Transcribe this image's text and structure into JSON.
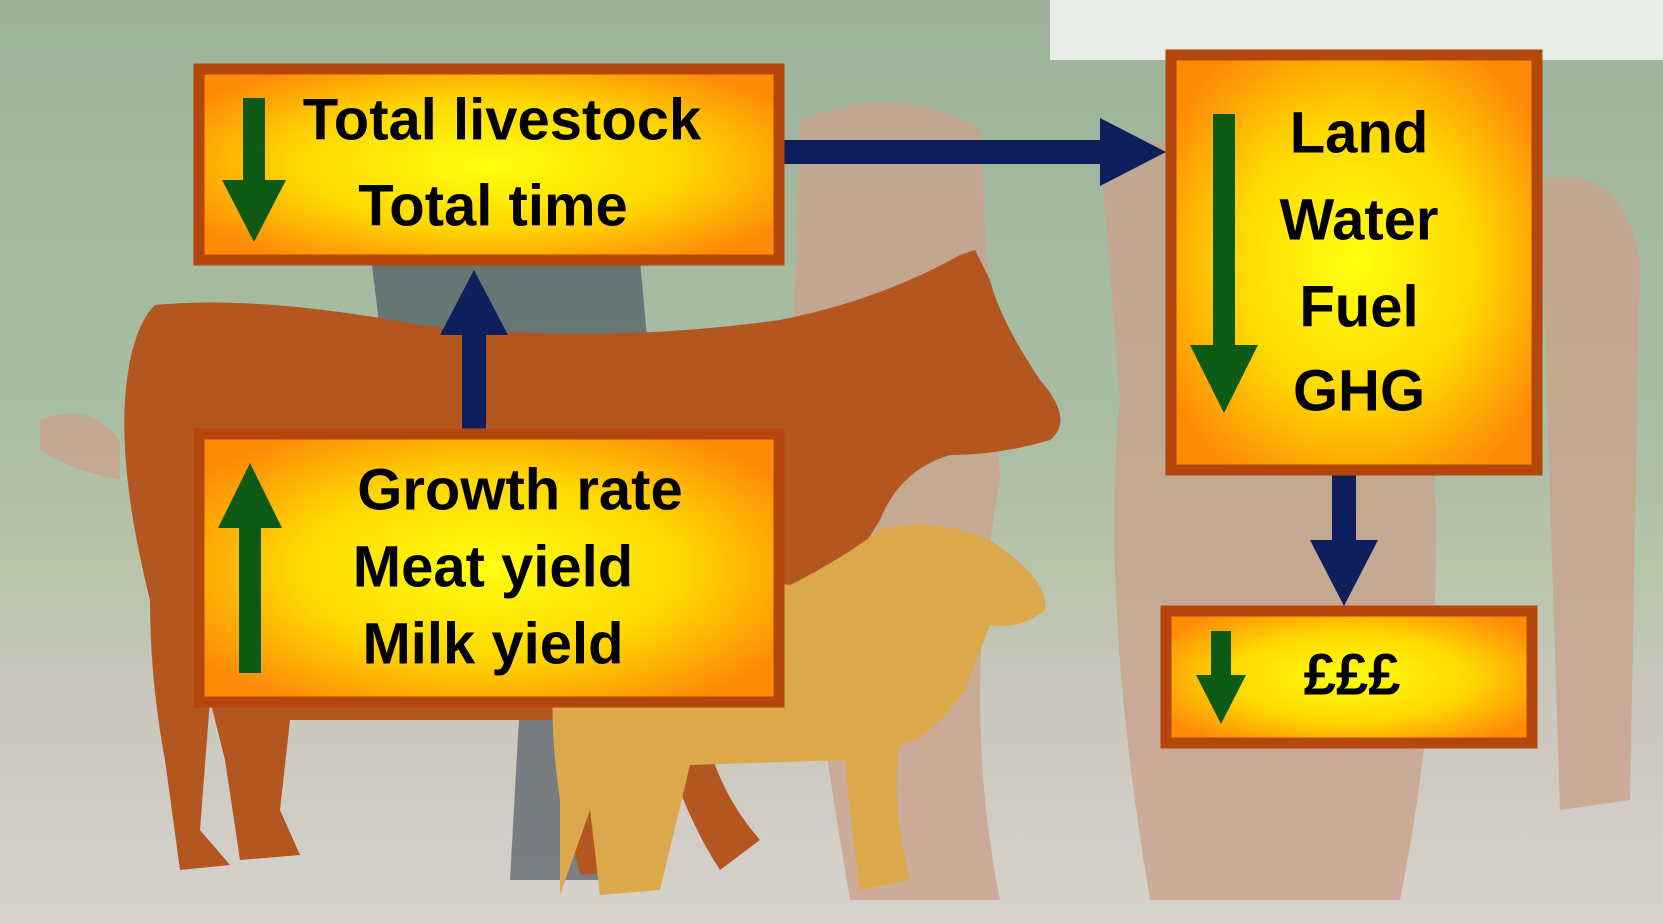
{
  "boxes": [
    {
      "lines": [
        "Total livestock",
        "Total time"
      ]
    },
    {
      "lines": [
        "Growth rate",
        "Meat yield",
        "Milk yield"
      ]
    },
    {
      "lines": [
        "Land",
        "Water",
        "Fuel",
        "GHG"
      ]
    },
    {
      "lines": [
        "£££"
      ]
    }
  ]
}
